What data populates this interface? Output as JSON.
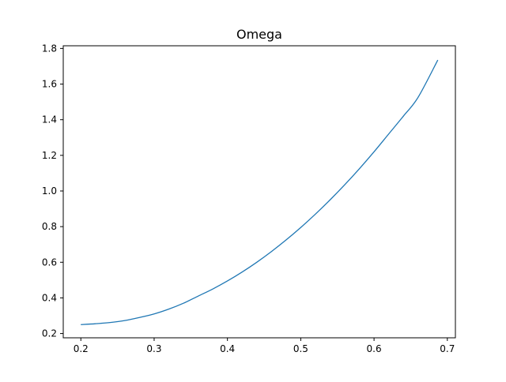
{
  "chart_data": {
    "type": "line",
    "title": "Omega",
    "xlabel": "",
    "ylabel": "",
    "xlim": [
      0.176,
      0.711
    ],
    "ylim": [
      0.176,
      1.815
    ],
    "xticks": [
      0.2,
      0.3,
      0.4,
      0.5,
      0.6,
      0.7
    ],
    "xtick_labels": [
      "0.2",
      "0.3",
      "0.4",
      "0.5",
      "0.6",
      "0.7"
    ],
    "yticks": [
      0.2,
      0.4,
      0.6,
      0.8,
      1.0,
      1.2,
      1.4,
      1.6,
      1.8
    ],
    "ytick_labels": [
      "0.2",
      "0.4",
      "0.6",
      "0.8",
      "1.0",
      "1.2",
      "1.4",
      "1.6",
      "1.8"
    ],
    "grid": false,
    "legend": false,
    "series": [
      {
        "color": "#1f77b4",
        "x": [
          0.2,
          0.22,
          0.24,
          0.26,
          0.28,
          0.3,
          0.32,
          0.34,
          0.36,
          0.38,
          0.4,
          0.42,
          0.44,
          0.46,
          0.48,
          0.5,
          0.52,
          0.54,
          0.56,
          0.58,
          0.6,
          0.62,
          0.64,
          0.66,
          0.687
        ],
        "y": [
          0.25,
          0.255,
          0.262,
          0.273,
          0.29,
          0.31,
          0.337,
          0.37,
          0.41,
          0.45,
          0.495,
          0.545,
          0.6,
          0.66,
          0.725,
          0.795,
          0.87,
          0.95,
          1.035,
          1.125,
          1.22,
          1.32,
          1.42,
          1.525,
          1.735
        ]
      }
    ]
  }
}
